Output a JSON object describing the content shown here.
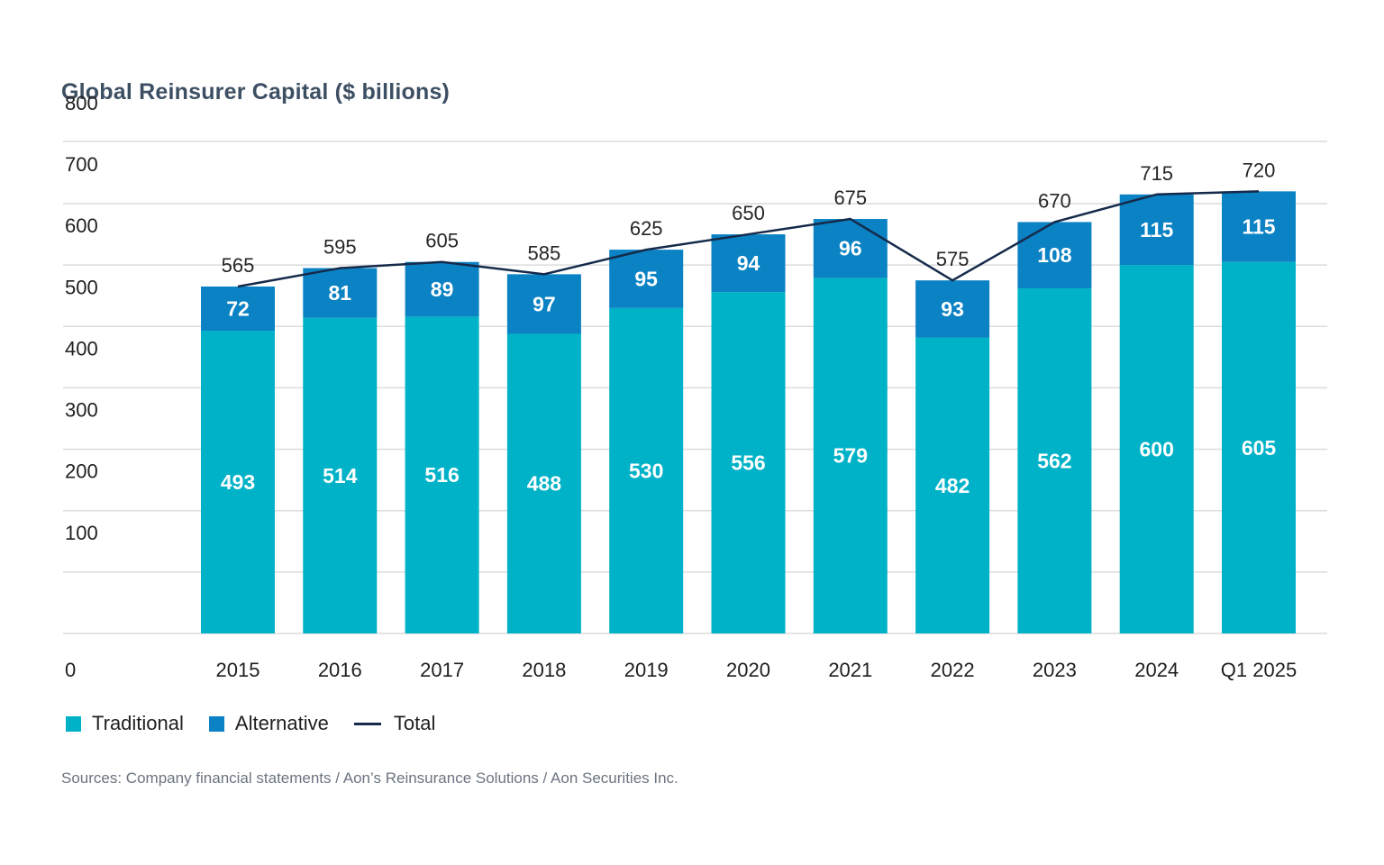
{
  "colors": {
    "traditional": "#00b2c7",
    "alternative": "#0a82c4",
    "total_line": "#152a4a",
    "grid": "#dcdcdc"
  },
  "chart_data": {
    "type": "bar",
    "stacked": true,
    "title": "Global Reinsurer Capital ($ billions)",
    "categories": [
      "2015",
      "2016",
      "2017",
      "2018",
      "2019",
      "2020",
      "2021",
      "2022",
      "2023",
      "2024",
      "Q1 2025"
    ],
    "series": [
      {
        "name": "Traditional",
        "values": [
          493,
          514,
          516,
          488,
          530,
          556,
          579,
          482,
          562,
          600,
          605
        ]
      },
      {
        "name": "Alternative",
        "values": [
          72,
          81,
          89,
          97,
          95,
          94,
          96,
          93,
          108,
          115,
          115
        ]
      },
      {
        "name": "Total",
        "type": "line",
        "values": [
          565,
          595,
          605,
          585,
          625,
          650,
          675,
          575,
          670,
          715,
          720
        ]
      }
    ],
    "yticks": [
      0,
      100,
      200,
      300,
      400,
      500,
      600,
      700,
      800
    ],
    "ylim": [
      0,
      800
    ],
    "xlabel": "",
    "ylabel": "",
    "legend": "bottom-left"
  },
  "source_note": "Sources: Company financial statements / Aon’s Reinsurance Solutions / Aon Securities Inc."
}
